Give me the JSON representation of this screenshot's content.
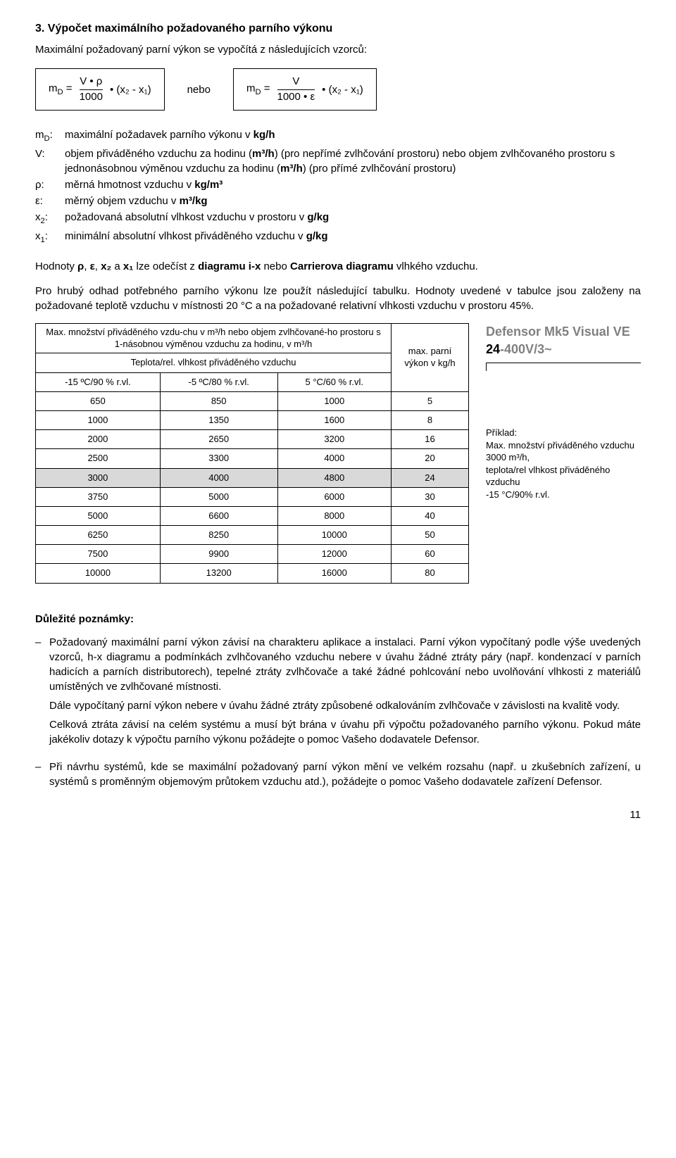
{
  "title": "3. Výpočet maximálního požadovaného parního výkonu",
  "intro": "Maximální požadovaný parní výkon se vypočítá z následujících vzorců:",
  "formula1": {
    "left": "m",
    "sub": "D",
    "eq": " = ",
    "frac_top": "V • ρ",
    "frac_bot": "1000",
    "tail": " • (x₂ - x₁)"
  },
  "conj": "nebo",
  "formula2": {
    "left": "m",
    "sub": "D",
    "eq": " = ",
    "frac_top": "V",
    "frac_bot": "1000 • ε",
    "tail": " • (x₂ - x₁)"
  },
  "defs": [
    {
      "sym_html": "m<sub>D</sub>:",
      "text": "maximální požadavek parního výkonu v <b>kg/h</b>"
    },
    {
      "sym_html": "V:",
      "text": "objem přiváděného vzduchu za hodinu (<b>m³/h</b>) (pro nepřímé zvlhčování prostoru) nebo objem zvlhčovaného prostoru s jednonásobnou výměnou vzduchu za hodinu (<b>m³/h</b>) (pro přímé zvlhčování prostoru)"
    },
    {
      "sym_html": "ρ:",
      "text": "měrná hmotnost vzduchu v <b>kg/m³</b>"
    },
    {
      "sym_html": "ε:",
      "text": "měrný objem vzduchu v <b>m³/kg</b>"
    },
    {
      "sym_html": "x<sub>2</sub>:",
      "text": "požadovaná absolutní vlhkost vzduchu v prostoru v <b>g/kg</b>"
    },
    {
      "sym_html": "x<sub>1</sub>:",
      "text": "minimální absolutní vlhkost přiváděného vzduchu v <b>g/kg</b>"
    }
  ],
  "p1": "Hodnoty <b>ρ</b>, <b>ε</b>, <b>x₂</b> a <b>x₁</b> lze odečíst z <b>diagramu i-x</b> nebo <b>Carrierova diagramu</b> vlhkého vzduchu.",
  "p2": "Pro hrubý odhad potřebného parního výkonu lze použít následující tabulku. Hodnoty uvedené v tabulce jsou založeny na požadované teplotě vzduchu v místnosti 20 °C a na požadované relativní vlhkosti vzduchu v prostoru 45%.",
  "table": {
    "hdr_main": "Max. množství přiváděného vzdu-chu v m³/h nebo objem zvlhčované-ho prostoru s 1-násobnou výměnou vzduchu za hodinu, v m³/h",
    "hdr_sub": "Teplota/rel. vlhkost přiváděného vzduchu",
    "hdr_right": "max. parní výkon v kg/h",
    "cols": [
      "-15 ºC/90 % r.vl.",
      "-5 ºC/80 % r.vl.",
      "5 °C/60 % r.vl."
    ],
    "rows": [
      {
        "c": [
          "650",
          "850",
          "1000",
          "5"
        ]
      },
      {
        "c": [
          "1000",
          "1350",
          "1600",
          "8"
        ]
      },
      {
        "c": [
          "2000",
          "2650",
          "3200",
          "16"
        ]
      },
      {
        "c": [
          "2500",
          "3300",
          "4000",
          "20"
        ]
      },
      {
        "c": [
          "3000",
          "4000",
          "4800",
          "24"
        ],
        "hl": true
      },
      {
        "c": [
          "3750",
          "5000",
          "6000",
          "30"
        ]
      },
      {
        "c": [
          "5000",
          "6600",
          "8000",
          "40"
        ]
      },
      {
        "c": [
          "6250",
          "8250",
          "10000",
          "50"
        ]
      },
      {
        "c": [
          "7500",
          "9900",
          "12000",
          "60"
        ]
      },
      {
        "c": [
          "10000",
          "13200",
          "16000",
          "80"
        ]
      }
    ]
  },
  "side": {
    "product_gray": "Defensor Mk5 Visual VE ",
    "product_bold": "24",
    "product_gray2": "-400V/3~",
    "example_title": "Příklad:",
    "example_l1": "Max. množství přiváděného vzduchu 3000 m³/h,",
    "example_l2": "teplota/rel vlhkost přiváděného vzduchu",
    "example_l3": "-15 °C/90% r.vl."
  },
  "notes_title": "Důležité poznámky:",
  "notes": [
    [
      "Požadovaný maximální parní výkon závisí na charakteru aplikace a instalaci. Parní výkon vypočítaný podle výše uvedených vzorců, h-x diagramu a podmínkách zvlhčovaného vzduchu nebere v úvahu žádné ztráty páry (např. kondenzací v parních hadicích a parních distributorech), tepelné ztráty zvlhčovače a také žádné pohlcování nebo uvolňování vlhkosti z materiálů umístěných ve zvlhčované místnosti.",
      "Dále vypočítaný parní výkon nebere v úvahu žádné ztráty způsobené odkalováním zvlhčovače v závislosti na kvalitě vody.",
      "Celková ztráta závisí na celém systému a musí být brána v úvahu při výpočtu požadovaného parního výkonu. Pokud máte jakékoliv dotazy k výpočtu parního výkonu požádejte o pomoc Vašeho dodavatele Defensor."
    ],
    [
      "Při návrhu systémů, kde se maximální požadovaný parní výkon mění ve velkém rozsahu (např. u zkušebních zařízení, u systémů s proměnným objemovým průtokem vzduchu atd.), požádejte o pomoc Vašeho dodavatele zařízení Defensor."
    ]
  ],
  "page": "11"
}
